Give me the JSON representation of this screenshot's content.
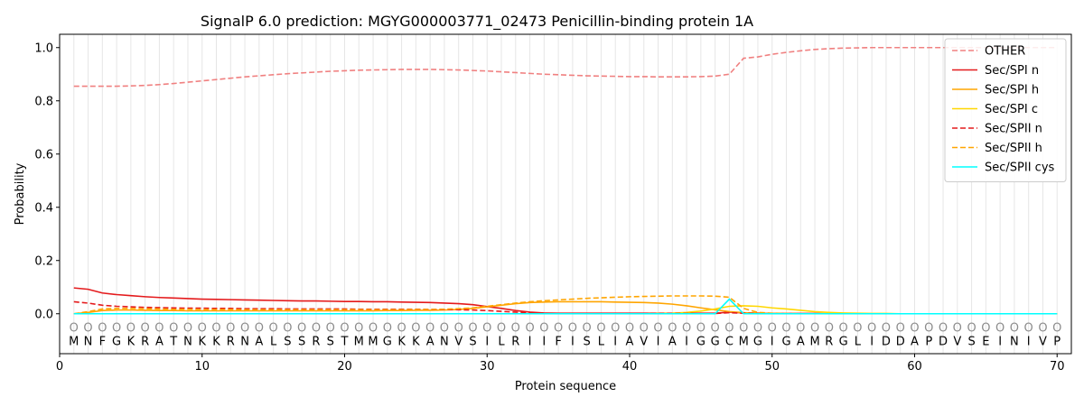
{
  "chart_data": {
    "type": "line",
    "title": "SignalP 6.0 prediction: MGYG000003771_02473 Penicillin-binding protein 1A",
    "xlabel": "Protein sequence",
    "ylabel": "Probability",
    "xlim": [
      0,
      71
    ],
    "ylim": [
      -0.15,
      1.05
    ],
    "xticks": [
      0,
      10,
      20,
      30,
      40,
      50,
      60,
      70
    ],
    "yticks": [
      0.0,
      0.2,
      0.4,
      0.6,
      0.8,
      1.0
    ],
    "ytick_labels": [
      "0.0",
      "0.2",
      "0.4",
      "0.6",
      "0.8",
      "1.0"
    ],
    "grid": "vertical lines at each residue",
    "legend_position": "top-right",
    "sequence": [
      "M",
      "N",
      "F",
      "G",
      "K",
      "R",
      "A",
      "T",
      "N",
      "K",
      "K",
      "R",
      "N",
      "A",
      "L",
      "S",
      "S",
      "R",
      "S",
      "T",
      "M",
      "M",
      "G",
      "K",
      "K",
      "A",
      "N",
      "V",
      "S",
      "I",
      "L",
      "R",
      "I",
      "I",
      "F",
      "I",
      "S",
      "L",
      "I",
      "A",
      "V",
      "I",
      "A",
      "I",
      "G",
      "G",
      "C",
      "M",
      "G",
      "I",
      "G",
      "A",
      "M",
      "R",
      "G",
      "L",
      "I",
      "D",
      "D",
      "A",
      "P",
      "D",
      "V",
      "S",
      "E",
      "I",
      "N",
      "I",
      "V",
      "P"
    ],
    "marker_symbol": "O",
    "series": [
      {
        "name": "OTHER",
        "color": "#f08080",
        "dash": "dashed",
        "values": [
          0.855,
          0.855,
          0.855,
          0.855,
          0.856,
          0.858,
          0.861,
          0.865,
          0.87,
          0.875,
          0.88,
          0.885,
          0.89,
          0.894,
          0.898,
          0.902,
          0.905,
          0.908,
          0.911,
          0.913,
          0.915,
          0.916,
          0.917,
          0.918,
          0.918,
          0.918,
          0.917,
          0.916,
          0.914,
          0.912,
          0.909,
          0.906,
          0.903,
          0.9,
          0.898,
          0.896,
          0.894,
          0.893,
          0.892,
          0.891,
          0.891,
          0.89,
          0.89,
          0.89,
          0.891,
          0.893,
          0.9,
          0.96,
          0.965,
          0.975,
          0.982,
          0.988,
          0.993,
          0.996,
          0.998,
          0.999,
          1.0,
          1.0,
          1.0,
          1.0,
          1.0,
          1.0,
          1.0,
          1.0,
          1.0,
          1.0,
          1.0,
          1.0,
          1.0,
          1.0
        ]
      },
      {
        "name": "Sec/SPI n",
        "color": "#e41a1c",
        "dash": "solid",
        "values": [
          0.097,
          0.092,
          0.078,
          0.072,
          0.068,
          0.064,
          0.061,
          0.059,
          0.057,
          0.055,
          0.054,
          0.053,
          0.052,
          0.051,
          0.05,
          0.049,
          0.048,
          0.048,
          0.047,
          0.046,
          0.046,
          0.045,
          0.045,
          0.044,
          0.043,
          0.042,
          0.04,
          0.038,
          0.034,
          0.027,
          0.02,
          0.012,
          0.006,
          0.003,
          0.002,
          0.002,
          0.002,
          0.002,
          0.002,
          0.002,
          0.002,
          0.002,
          0.002,
          0.002,
          0.002,
          0.002,
          0.006,
          0.003,
          0.002,
          0.001,
          0.001,
          0.001,
          0.001,
          0.0,
          0.0,
          0.0,
          0.0,
          0.0,
          0.0,
          0.0,
          0.0,
          0.0,
          0.0,
          0.0,
          0.0,
          0.0,
          0.0,
          0.0,
          0.0,
          0.0
        ]
      },
      {
        "name": "Sec/SPI h",
        "color": "#ffa500",
        "dash": "solid",
        "values": [
          0.0,
          0.005,
          0.012,
          0.014,
          0.014,
          0.013,
          0.012,
          0.012,
          0.011,
          0.011,
          0.011,
          0.011,
          0.011,
          0.011,
          0.011,
          0.011,
          0.011,
          0.011,
          0.011,
          0.011,
          0.011,
          0.011,
          0.012,
          0.012,
          0.013,
          0.013,
          0.014,
          0.016,
          0.02,
          0.026,
          0.032,
          0.038,
          0.042,
          0.044,
          0.045,
          0.045,
          0.045,
          0.045,
          0.044,
          0.043,
          0.042,
          0.04,
          0.036,
          0.03,
          0.022,
          0.015,
          0.008,
          0.004,
          0.002,
          0.001,
          0.0,
          0.0,
          0.0,
          0.0,
          0.0,
          0.0,
          0.0,
          0.0,
          0.0,
          0.0,
          0.0,
          0.0,
          0.0,
          0.0,
          0.0,
          0.0,
          0.0,
          0.0,
          0.0,
          0.0
        ]
      },
      {
        "name": "Sec/SPI c",
        "color": "#ffd700",
        "dash": "solid",
        "values": [
          0.0,
          0.0,
          0.0,
          0.0,
          0.0,
          0.0,
          0.0,
          0.0,
          0.0,
          0.0,
          0.0,
          0.0,
          0.0,
          0.0,
          0.0,
          0.0,
          0.0,
          0.0,
          0.0,
          0.0,
          0.0,
          0.0,
          0.0,
          0.0,
          0.0,
          0.0,
          0.0,
          0.0,
          0.0,
          0.0,
          0.0,
          0.0,
          0.0,
          0.0,
          0.0,
          0.0,
          0.0,
          0.0,
          0.0,
          0.0,
          0.0,
          0.001,
          0.002,
          0.005,
          0.01,
          0.018,
          0.028,
          0.03,
          0.028,
          0.022,
          0.018,
          0.013,
          0.008,
          0.005,
          0.003,
          0.002,
          0.001,
          0.001,
          0.0,
          0.0,
          0.0,
          0.0,
          0.0,
          0.0,
          0.0,
          0.0,
          0.0,
          0.0,
          0.0,
          0.0
        ]
      },
      {
        "name": "Sec/SPII n",
        "color": "#e41a1c",
        "dash": "dashed",
        "values": [
          0.045,
          0.04,
          0.032,
          0.028,
          0.026,
          0.024,
          0.023,
          0.022,
          0.021,
          0.021,
          0.02,
          0.02,
          0.019,
          0.019,
          0.019,
          0.018,
          0.018,
          0.018,
          0.018,
          0.018,
          0.017,
          0.017,
          0.017,
          0.017,
          0.017,
          0.016,
          0.016,
          0.015,
          0.014,
          0.012,
          0.009,
          0.006,
          0.003,
          0.002,
          0.001,
          0.001,
          0.001,
          0.001,
          0.001,
          0.001,
          0.001,
          0.001,
          0.001,
          0.001,
          0.001,
          0.001,
          0.004,
          0.002,
          0.001,
          0.0,
          0.0,
          0.0,
          0.0,
          0.0,
          0.0,
          0.0,
          0.0,
          0.0,
          0.0,
          0.0,
          0.0,
          0.0,
          0.0,
          0.0,
          0.0,
          0.0,
          0.0,
          0.0,
          0.0,
          0.0
        ]
      },
      {
        "name": "Sec/SPII h",
        "color": "#ffa500",
        "dash": "dashed",
        "values": [
          0.0,
          0.008,
          0.018,
          0.02,
          0.02,
          0.019,
          0.018,
          0.017,
          0.017,
          0.016,
          0.016,
          0.016,
          0.015,
          0.015,
          0.015,
          0.015,
          0.015,
          0.015,
          0.015,
          0.015,
          0.015,
          0.015,
          0.015,
          0.015,
          0.016,
          0.016,
          0.017,
          0.019,
          0.022,
          0.028,
          0.034,
          0.04,
          0.045,
          0.049,
          0.052,
          0.055,
          0.058,
          0.06,
          0.062,
          0.064,
          0.065,
          0.066,
          0.067,
          0.067,
          0.067,
          0.066,
          0.062,
          0.02,
          0.005,
          0.002,
          0.001,
          0.0,
          0.0,
          0.0,
          0.0,
          0.0,
          0.0,
          0.0,
          0.0,
          0.0,
          0.0,
          0.0,
          0.0,
          0.0,
          0.0,
          0.0,
          0.0,
          0.0,
          0.0,
          0.0
        ]
      },
      {
        "name": "Sec/SPII cys",
        "color": "#00ffff",
        "dash": "solid",
        "values": [
          0.0,
          0.0,
          0.0,
          0.0,
          0.0,
          0.0,
          0.0,
          0.0,
          0.0,
          0.0,
          0.0,
          0.0,
          0.0,
          0.0,
          0.0,
          0.0,
          0.0,
          0.0,
          0.0,
          0.0,
          0.0,
          0.0,
          0.0,
          0.0,
          0.0,
          0.0,
          0.0,
          0.0,
          0.0,
          0.0,
          0.0,
          0.0,
          0.0,
          0.0,
          0.0,
          0.0,
          0.0,
          0.0,
          0.0,
          0.0,
          0.0,
          0.0,
          0.0,
          0.0,
          0.0,
          0.0,
          0.055,
          0.0,
          0.0,
          0.0,
          0.0,
          0.0,
          0.0,
          0.0,
          0.0,
          0.0,
          0.0,
          0.0,
          0.0,
          0.0,
          0.0,
          0.0,
          0.0,
          0.0,
          0.0,
          0.0,
          0.0,
          0.0,
          0.0,
          0.0
        ]
      }
    ]
  }
}
